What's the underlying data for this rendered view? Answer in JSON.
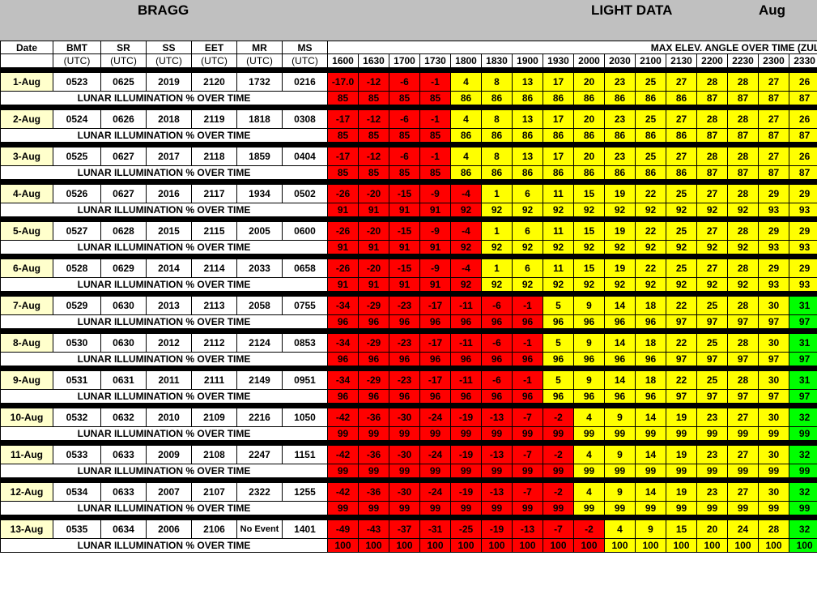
{
  "header": {
    "location": "BRAGG",
    "title": "LIGHT DATA",
    "month": "Aug"
  },
  "columns": {
    "date": "Date",
    "labels": [
      "BMT",
      "SR",
      "SS",
      "EET",
      "MR",
      "MS"
    ],
    "utc": "(UTC)",
    "max_elev_title": "MAX ELEV. ANGLE OVER TIME (ZUL",
    "times": [
      "1600",
      "1630",
      "1700",
      "1730",
      "1800",
      "1830",
      "1900",
      "1930",
      "2000",
      "2030",
      "2100",
      "2130",
      "2200",
      "2230",
      "2300",
      "2330"
    ]
  },
  "illum_label": "LUNAR ILLUMINATION % OVER TIME",
  "colors": {
    "negative": "#ff0000",
    "positive": "#ffff00",
    "high": "#00ff00",
    "date_cell": "#ffffcc",
    "header_bg": "#c0c0c0"
  },
  "days": [
    {
      "date": "1-Aug",
      "bmt": "0523",
      "sr": "0625",
      "ss": "2019",
      "eet": "2120",
      "mr": "1732",
      "ms": "0216",
      "elev": [
        "-17.0",
        "-12",
        "-6",
        "-1",
        "4",
        "8",
        "13",
        "17",
        "20",
        "23",
        "25",
        "27",
        "28",
        "28",
        "27",
        "26"
      ],
      "illum": [
        "85",
        "85",
        "85",
        "85",
        "86",
        "86",
        "86",
        "86",
        "86",
        "86",
        "86",
        "86",
        "87",
        "87",
        "87",
        "87"
      ]
    },
    {
      "date": "2-Aug",
      "bmt": "0524",
      "sr": "0626",
      "ss": "2018",
      "eet": "2119",
      "mr": "1818",
      "ms": "0308",
      "elev": [
        "-17",
        "-12",
        "-6",
        "-1",
        "4",
        "8",
        "13",
        "17",
        "20",
        "23",
        "25",
        "27",
        "28",
        "28",
        "27",
        "26"
      ],
      "illum": [
        "85",
        "85",
        "85",
        "85",
        "86",
        "86",
        "86",
        "86",
        "86",
        "86",
        "86",
        "86",
        "87",
        "87",
        "87",
        "87"
      ]
    },
    {
      "date": "3-Aug",
      "bmt": "0525",
      "sr": "0627",
      "ss": "2017",
      "eet": "2118",
      "mr": "1859",
      "ms": "0404",
      "elev": [
        "-17",
        "-12",
        "-6",
        "-1",
        "4",
        "8",
        "13",
        "17",
        "20",
        "23",
        "25",
        "27",
        "28",
        "28",
        "27",
        "26"
      ],
      "illum": [
        "85",
        "85",
        "85",
        "85",
        "86",
        "86",
        "86",
        "86",
        "86",
        "86",
        "86",
        "86",
        "87",
        "87",
        "87",
        "87"
      ]
    },
    {
      "date": "4-Aug",
      "bmt": "0526",
      "sr": "0627",
      "ss": "2016",
      "eet": "2117",
      "mr": "1934",
      "ms": "0502",
      "elev": [
        "-26",
        "-20",
        "-15",
        "-9",
        "-4",
        "1",
        "6",
        "11",
        "15",
        "19",
        "22",
        "25",
        "27",
        "28",
        "29",
        "29"
      ],
      "illum": [
        "91",
        "91",
        "91",
        "91",
        "92",
        "92",
        "92",
        "92",
        "92",
        "92",
        "92",
        "92",
        "92",
        "92",
        "93",
        "93"
      ]
    },
    {
      "date": "5-Aug",
      "bmt": "0527",
      "sr": "0628",
      "ss": "2015",
      "eet": "2115",
      "mr": "2005",
      "ms": "0600",
      "elev": [
        "-26",
        "-20",
        "-15",
        "-9",
        "-4",
        "1",
        "6",
        "11",
        "15",
        "19",
        "22",
        "25",
        "27",
        "28",
        "29",
        "29"
      ],
      "illum": [
        "91",
        "91",
        "91",
        "91",
        "92",
        "92",
        "92",
        "92",
        "92",
        "92",
        "92",
        "92",
        "92",
        "92",
        "93",
        "93"
      ]
    },
    {
      "date": "6-Aug",
      "bmt": "0528",
      "sr": "0629",
      "ss": "2014",
      "eet": "2114",
      "mr": "2033",
      "ms": "0658",
      "elev": [
        "-26",
        "-20",
        "-15",
        "-9",
        "-4",
        "1",
        "6",
        "11",
        "15",
        "19",
        "22",
        "25",
        "27",
        "28",
        "29",
        "29"
      ],
      "illum": [
        "91",
        "91",
        "91",
        "91",
        "92",
        "92",
        "92",
        "92",
        "92",
        "92",
        "92",
        "92",
        "92",
        "92",
        "93",
        "93"
      ]
    },
    {
      "date": "7-Aug",
      "bmt": "0529",
      "sr": "0630",
      "ss": "2013",
      "eet": "2113",
      "mr": "2058",
      "ms": "0755",
      "elev": [
        "-34",
        "-29",
        "-23",
        "-17",
        "-11",
        "-6",
        "-1",
        "5",
        "9",
        "14",
        "18",
        "22",
        "25",
        "28",
        "30",
        "31"
      ],
      "illum": [
        "96",
        "96",
        "96",
        "96",
        "96",
        "96",
        "96",
        "96",
        "96",
        "96",
        "96",
        "97",
        "97",
        "97",
        "97",
        "97"
      ]
    },
    {
      "date": "8-Aug",
      "bmt": "0530",
      "sr": "0630",
      "ss": "2012",
      "eet": "2112",
      "mr": "2124",
      "ms": "0853",
      "elev": [
        "-34",
        "-29",
        "-23",
        "-17",
        "-11",
        "-6",
        "-1",
        "5",
        "9",
        "14",
        "18",
        "22",
        "25",
        "28",
        "30",
        "31"
      ],
      "illum": [
        "96",
        "96",
        "96",
        "96",
        "96",
        "96",
        "96",
        "96",
        "96",
        "96",
        "96",
        "97",
        "97",
        "97",
        "97",
        "97"
      ]
    },
    {
      "date": "9-Aug",
      "bmt": "0531",
      "sr": "0631",
      "ss": "2011",
      "eet": "2111",
      "mr": "2149",
      "ms": "0951",
      "elev": [
        "-34",
        "-29",
        "-23",
        "-17",
        "-11",
        "-6",
        "-1",
        "5",
        "9",
        "14",
        "18",
        "22",
        "25",
        "28",
        "30",
        "31"
      ],
      "illum": [
        "96",
        "96",
        "96",
        "96",
        "96",
        "96",
        "96",
        "96",
        "96",
        "96",
        "96",
        "97",
        "97",
        "97",
        "97",
        "97"
      ]
    },
    {
      "date": "10-Aug",
      "bmt": "0532",
      "sr": "0632",
      "ss": "2010",
      "eet": "2109",
      "mr": "2216",
      "ms": "1050",
      "elev": [
        "-42",
        "-36",
        "-30",
        "-24",
        "-19",
        "-13",
        "-7",
        "-2",
        "4",
        "9",
        "14",
        "19",
        "23",
        "27",
        "30",
        "32"
      ],
      "illum": [
        "99",
        "99",
        "99",
        "99",
        "99",
        "99",
        "99",
        "99",
        "99",
        "99",
        "99",
        "99",
        "99",
        "99",
        "99",
        "99"
      ]
    },
    {
      "date": "11-Aug",
      "bmt": "0533",
      "sr": "0633",
      "ss": "2009",
      "eet": "2108",
      "mr": "2247",
      "ms": "1151",
      "elev": [
        "-42",
        "-36",
        "-30",
        "-24",
        "-19",
        "-13",
        "-7",
        "-2",
        "4",
        "9",
        "14",
        "19",
        "23",
        "27",
        "30",
        "32"
      ],
      "illum": [
        "99",
        "99",
        "99",
        "99",
        "99",
        "99",
        "99",
        "99",
        "99",
        "99",
        "99",
        "99",
        "99",
        "99",
        "99",
        "99"
      ]
    },
    {
      "date": "12-Aug",
      "bmt": "0534",
      "sr": "0633",
      "ss": "2007",
      "eet": "2107",
      "mr": "2322",
      "ms": "1255",
      "elev": [
        "-42",
        "-36",
        "-30",
        "-24",
        "-19",
        "-13",
        "-7",
        "-2",
        "4",
        "9",
        "14",
        "19",
        "23",
        "27",
        "30",
        "32"
      ],
      "illum": [
        "99",
        "99",
        "99",
        "99",
        "99",
        "99",
        "99",
        "99",
        "99",
        "99",
        "99",
        "99",
        "99",
        "99",
        "99",
        "99"
      ]
    },
    {
      "date": "13-Aug",
      "bmt": "0535",
      "sr": "0634",
      "ss": "2006",
      "eet": "2106",
      "mr": "No Event",
      "ms": "1401",
      "elev": [
        "-49",
        "-43",
        "-37",
        "-31",
        "-25",
        "-19",
        "-13",
        "-7",
        "-2",
        "4",
        "9",
        "15",
        "20",
        "24",
        "28",
        "32"
      ],
      "illum": [
        "100",
        "100",
        "100",
        "100",
        "100",
        "100",
        "100",
        "100",
        "100",
        "100",
        "100",
        "100",
        "100",
        "100",
        "100",
        "100"
      ]
    }
  ]
}
